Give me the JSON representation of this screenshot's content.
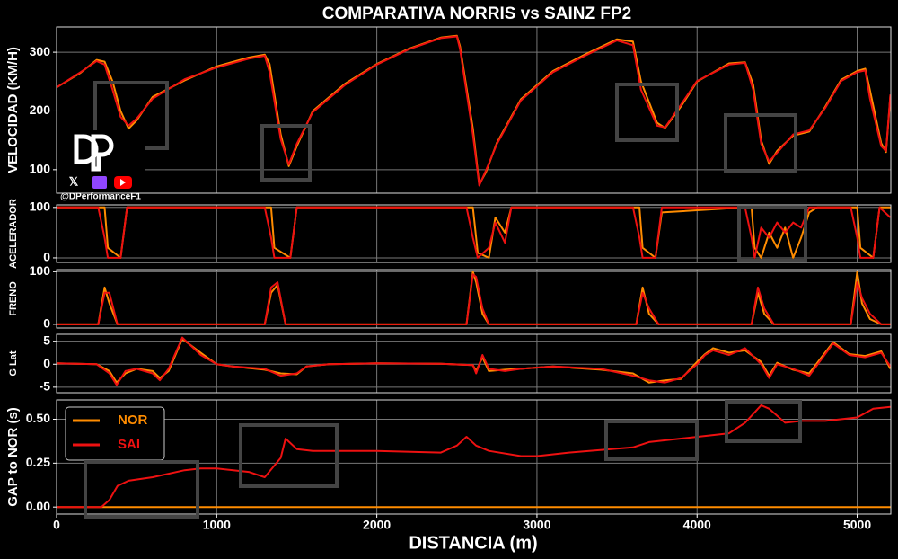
{
  "chart_data": [
    {
      "type": "line",
      "title": "COMPARATIVA NORRIS vs SAINZ FP2",
      "ylabel": "VELOCIDAD (KM/H)",
      "x": [
        0,
        150,
        250,
        300,
        350,
        400,
        450,
        500,
        600,
        800,
        1000,
        1200,
        1300,
        1330,
        1400,
        1450,
        1500,
        1600,
        1800,
        2000,
        2200,
        2400,
        2500,
        2520,
        2600,
        2640,
        2680,
        2750,
        2900,
        3100,
        3300,
        3500,
        3600,
        3650,
        3750,
        3800,
        3900,
        4000,
        4200,
        4300,
        4350,
        4400,
        4450,
        4500,
        4600,
        4700,
        4800,
        4900,
        5000,
        5050,
        5080,
        5150,
        5180,
        5207
      ],
      "series": [
        {
          "color": "#ff8c00",
          "values": [
            240,
            265,
            287,
            284,
            250,
            200,
            170,
            184,
            224,
            252,
            276,
            291,
            296,
            280,
            160,
            106,
            140,
            200,
            246,
            280,
            306,
            325,
            328,
            310,
            170,
            75,
            95,
            146,
            220,
            268,
            296,
            322,
            318,
            250,
            180,
            171,
            208,
            250,
            281,
            283,
            245,
            150,
            110,
            132,
            158,
            165,
            207,
            253,
            268,
            272,
            235,
            145,
            130,
            226
          ]
        },
        {
          "color": "#ee1111",
          "values": [
            240,
            266,
            285,
            279,
            236,
            190,
            175,
            187,
            221,
            254,
            274,
            289,
            294,
            266,
            152,
            109,
            144,
            198,
            244,
            279,
            305,
            324,
            327,
            305,
            160,
            73,
            98,
            144,
            218,
            266,
            294,
            320,
            312,
            236,
            175,
            172,
            211,
            251,
            279,
            282,
            236,
            144,
            114,
            129,
            160,
            167,
            205,
            251,
            266,
            269,
            221,
            140,
            132,
            228
          ]
        }
      ],
      "xlim": [
        0,
        5210
      ],
      "ylim": [
        60,
        343
      ],
      "yticks": [
        100,
        200,
        300
      ],
      "grid": true
    },
    {
      "type": "line",
      "ylabel": "ACELERADOR",
      "x": [
        0,
        260,
        300,
        320,
        400,
        440,
        1300,
        1340,
        1360,
        1460,
        1500,
        2560,
        2600,
        2630,
        2700,
        2740,
        2800,
        2840,
        3600,
        3640,
        3660,
        3740,
        3780,
        4300,
        4340,
        4360,
        4400,
        4450,
        4500,
        4550,
        4600,
        4650,
        4700,
        4750,
        4960,
        5000,
        5020,
        5100,
        5140,
        5207
      ],
      "series": [
        {
          "color": "#ff8c00",
          "values": [
            100,
            100,
            100,
            20,
            0,
            100,
            100,
            100,
            20,
            0,
            100,
            100,
            100,
            10,
            0,
            80,
            50,
            100,
            100,
            100,
            20,
            0,
            90,
            100,
            100,
            20,
            0,
            50,
            20,
            60,
            0,
            40,
            90,
            100,
            100,
            100,
            20,
            0,
            100,
            100
          ]
        },
        {
          "color": "#ee1111",
          "values": [
            100,
            100,
            40,
            0,
            0,
            100,
            100,
            40,
            0,
            0,
            100,
            100,
            40,
            0,
            20,
            70,
            30,
            100,
            100,
            40,
            0,
            0,
            100,
            100,
            40,
            0,
            60,
            40,
            70,
            50,
            70,
            60,
            100,
            100,
            100,
            40,
            0,
            0,
            100,
            80
          ]
        }
      ],
      "xlim": [
        0,
        5210
      ],
      "ylim": [
        -9,
        105
      ],
      "yticks": [
        0,
        100
      ],
      "grid": true
    },
    {
      "type": "line",
      "ylabel": "FRENO",
      "x": [
        0,
        260,
        300,
        330,
        380,
        1300,
        1340,
        1380,
        1430,
        2560,
        2600,
        2620,
        2660,
        2700,
        3620,
        3660,
        3700,
        3760,
        4340,
        4380,
        4420,
        4480,
        4960,
        5000,
        5030,
        5080,
        5150,
        5207
      ],
      "series": [
        {
          "color": "#ff8c00",
          "values": [
            0,
            0,
            70,
            40,
            0,
            0,
            60,
            75,
            0,
            0,
            100,
            80,
            20,
            0,
            0,
            70,
            20,
            0,
            0,
            60,
            20,
            0,
            0,
            100,
            40,
            10,
            0,
            0
          ]
        },
        {
          "color": "#ee1111",
          "values": [
            0,
            0,
            60,
            60,
            0,
            0,
            70,
            80,
            0,
            0,
            95,
            90,
            30,
            0,
            0,
            60,
            30,
            0,
            0,
            70,
            30,
            0,
            0,
            80,
            50,
            20,
            0,
            0
          ]
        }
      ],
      "xlim": [
        0,
        5210
      ],
      "ylim": [
        -7,
        104
      ],
      "yticks": [
        0,
        100
      ],
      "grid": true
    },
    {
      "type": "line",
      "ylabel": "G Lat",
      "x": [
        0,
        250,
        330,
        375,
        430,
        500,
        600,
        645,
        700,
        785,
        900,
        1000,
        1100,
        1300,
        1400,
        1500,
        1560,
        1700,
        2000,
        2400,
        2600,
        2620,
        2660,
        2700,
        2800,
        2900,
        3100,
        3400,
        3600,
        3700,
        3800,
        3900,
        4000,
        4050,
        4100,
        4200,
        4300,
        4400,
        4450,
        4500,
        4600,
        4700,
        4850,
        4950,
        5050,
        5150,
        5207
      ],
      "series": [
        {
          "color": "#ff8c00",
          "values": [
            0.2,
            0,
            -1.5,
            -4,
            -2,
            -1,
            -1.5,
            -3,
            -1.5,
            5.5,
            2.5,
            0,
            -0.5,
            -1.2,
            -2,
            -2.2,
            -0.5,
            0,
            0.2,
            0.1,
            -0.2,
            -1.5,
            1.5,
            -1.5,
            -1.2,
            -1,
            -0.5,
            -1.2,
            -2,
            -4,
            -3.5,
            -3.2,
            0.5,
            2.2,
            3.5,
            2.5,
            3,
            0.5,
            -2.5,
            0.3,
            -1.2,
            -2,
            4.8,
            2.2,
            1.8,
            2.8,
            -1
          ]
        },
        {
          "color": "#ee1111",
          "values": [
            0.2,
            0,
            -2,
            -4.5,
            -1.5,
            -1,
            -2,
            -3.5,
            -1,
            5.8,
            2,
            0,
            -0.5,
            -1,
            -2.5,
            -2,
            -0.5,
            0,
            0.2,
            0.1,
            -0.2,
            -2,
            2,
            -1,
            -1.5,
            -1,
            -0.5,
            -1,
            -2.5,
            -3.5,
            -4,
            -3,
            0,
            2,
            3,
            2,
            3.5,
            0,
            -3,
            0,
            -1,
            -2.5,
            4.5,
            2,
            1.5,
            2.5,
            -0.5
          ]
        }
      ],
      "xlim": [
        0,
        5210
      ],
      "ylim": [
        -6.2,
        6.5
      ],
      "yticks": [
        -5,
        0,
        5
      ],
      "grid": true
    },
    {
      "type": "line",
      "ylabel": "GAP to NOR (s)",
      "xlabel": "DISTANCIA (m)",
      "x": [
        0,
        280,
        330,
        380,
        450,
        600,
        800,
        900,
        1000,
        1200,
        1300,
        1400,
        1430,
        1500,
        1600,
        2000,
        2400,
        2500,
        2560,
        2620,
        2700,
        2900,
        3000,
        3200,
        3600,
        3700,
        3900,
        4100,
        4200,
        4300,
        4400,
        4450,
        4550,
        4650,
        4800,
        5000,
        5100,
        5207
      ],
      "series": [
        {
          "name": "NOR",
          "color": "#ff8c00",
          "values": [
            0,
            0,
            0,
            0,
            0,
            0,
            0,
            0,
            0,
            0,
            0,
            0,
            0,
            0,
            0,
            0,
            0,
            0,
            0,
            0,
            0,
            0,
            0,
            0,
            0,
            0,
            0,
            0,
            0,
            0,
            0,
            0,
            0,
            0,
            0,
            0,
            0,
            0
          ]
        },
        {
          "name": "SAI",
          "color": "#ee1111",
          "values": [
            0,
            0,
            0.04,
            0.12,
            0.15,
            0.17,
            0.21,
            0.22,
            0.22,
            0.2,
            0.17,
            0.28,
            0.39,
            0.33,
            0.32,
            0.32,
            0.31,
            0.35,
            0.4,
            0.35,
            0.32,
            0.29,
            0.29,
            0.31,
            0.34,
            0.37,
            0.39,
            0.41,
            0.42,
            0.48,
            0.58,
            0.56,
            0.48,
            0.49,
            0.49,
            0.51,
            0.56,
            0.57
          ]
        }
      ],
      "xlim": [
        0,
        5210
      ],
      "ylim": [
        -0.04,
        0.61
      ],
      "yticks": [
        {
          "value": 0,
          "label": "0.00"
        },
        {
          "value": 0.25,
          "label": "0.25"
        },
        {
          "value": 0.5,
          "label": "0.50"
        }
      ],
      "xticks": [
        0,
        1000,
        2000,
        3000,
        4000,
        5000
      ],
      "grid": true,
      "legend": "upper left"
    }
  ],
  "watermark": {
    "handle": "@DPerformanceF1"
  }
}
